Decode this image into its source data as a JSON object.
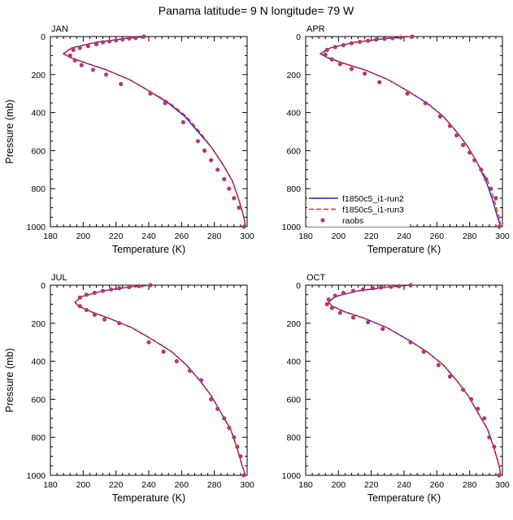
{
  "figure": {
    "title": "Panama  latitude= 9 N longitude= 79 W"
  },
  "legend": {
    "entries": [
      {
        "label": "f1850c5_i1-run2",
        "color": "#1f1fbf",
        "style": "solid"
      },
      {
        "label": "f1850c5_i1-run3",
        "color": "#e8261f",
        "style": "dashed"
      },
      {
        "label": "raobs",
        "color": "#b23a6e",
        "style": "marker"
      }
    ]
  },
  "chart_data": [
    {
      "type": "line",
      "panel": "JAN",
      "xlabel": "Temperature (K)",
      "ylabel": "Pressure (mb)",
      "xlim": [
        180,
        300
      ],
      "ylim": [
        0,
        1000
      ],
      "y_inverted": true,
      "xticks": [
        "180",
        "200",
        "220",
        "240",
        "260",
        "280",
        "300"
      ],
      "yticks": [
        "0",
        "200",
        "400",
        "600",
        "800",
        "1000"
      ],
      "series": [
        {
          "name": "f1850c5_i1-run2",
          "x": [
            239,
            226,
            208,
            193,
            188,
            192,
            202,
            214,
            228,
            241,
            252,
            262,
            270,
            278,
            285,
            291,
            295,
            298,
            299
          ],
          "y": [
            0,
            10,
            30,
            60,
            90,
            110,
            140,
            175,
            225,
            290,
            350,
            420,
            500,
            580,
            670,
            760,
            860,
            950,
            1000
          ]
        },
        {
          "name": "f1850c5_i1-run3",
          "x": [
            239,
            226,
            208,
            193,
            188,
            192,
            202,
            214,
            228,
            241,
            252,
            263,
            271,
            278,
            285,
            291,
            295,
            298,
            299
          ],
          "y": [
            0,
            10,
            30,
            60,
            90,
            110,
            140,
            175,
            225,
            290,
            345,
            420,
            500,
            580,
            670,
            760,
            860,
            950,
            1000
          ]
        },
        {
          "name": "raobs",
          "x": [
            237,
            232,
            228,
            224,
            220,
            216,
            212,
            208,
            203,
            198,
            194,
            192,
            195,
            199,
            206,
            214,
            223,
            241,
            250,
            261,
            270,
            274,
            278,
            282,
            286,
            289,
            292,
            295,
            298
          ],
          "y": [
            0,
            7,
            10,
            15,
            20,
            25,
            30,
            40,
            50,
            60,
            70,
            100,
            125,
            150,
            175,
            200,
            250,
            300,
            350,
            450,
            550,
            600,
            650,
            700,
            750,
            800,
            850,
            900,
            1000
          ]
        }
      ]
    },
    {
      "type": "line",
      "panel": "APR",
      "xlabel": "Temperature (K)",
      "ylabel": "",
      "xlim": [
        180,
        300
      ],
      "ylim": [
        0,
        1000
      ],
      "y_inverted": true,
      "xticks": [
        "180",
        "200",
        "220",
        "240",
        "260",
        "280",
        "300"
      ],
      "yticks": [
        "0",
        "200",
        "400",
        "600",
        "800",
        "1000"
      ],
      "series": [
        {
          "name": "f1850c5_i1-run2",
          "x": [
            243,
            229,
            210,
            195,
            189,
            193,
            203,
            216,
            230,
            243,
            254,
            264,
            272,
            279,
            285,
            290,
            294,
            297,
            299
          ],
          "y": [
            0,
            10,
            30,
            60,
            90,
            110,
            140,
            175,
            225,
            290,
            350,
            420,
            500,
            580,
            670,
            760,
            860,
            950,
            1000
          ]
        },
        {
          "name": "f1850c5_i1-run3",
          "x": [
            243,
            229,
            210,
            195,
            189,
            193,
            203,
            216,
            230,
            243,
            254,
            264,
            272,
            279,
            285,
            291,
            295,
            298,
            299
          ],
          "y": [
            0,
            10,
            30,
            60,
            90,
            110,
            140,
            175,
            225,
            290,
            350,
            420,
            500,
            580,
            670,
            760,
            860,
            950,
            1000
          ]
        },
        {
          "name": "raobs",
          "x": [
            245,
            238,
            233,
            228,
            223,
            218,
            213,
            208,
            203,
            198,
            193,
            192,
            196,
            201,
            208,
            216,
            225,
            242,
            253,
            262,
            268,
            272,
            276,
            280,
            283,
            287,
            290,
            293,
            296,
            298
          ],
          "y": [
            0,
            5,
            8,
            12,
            16,
            22,
            28,
            35,
            45,
            55,
            70,
            95,
            120,
            145,
            170,
            195,
            240,
            300,
            350,
            420,
            470,
            520,
            570,
            610,
            650,
            700,
            750,
            800,
            850,
            1000
          ]
        }
      ]
    },
    {
      "type": "line",
      "panel": "JUL",
      "xlabel": "Temperature (K)",
      "ylabel": "Pressure (mb)",
      "xlim": [
        180,
        300
      ],
      "ylim": [
        0,
        1000
      ],
      "y_inverted": true,
      "xticks": [
        "180",
        "200",
        "220",
        "240",
        "260",
        "280",
        "300"
      ],
      "yticks": [
        "0",
        "200",
        "400",
        "600",
        "800",
        "1000"
      ],
      "series": [
        {
          "name": "f1850c5_i1-run2",
          "x": [
            241,
            228,
            212,
            199,
            195,
            197,
            205,
            216,
            230,
            243,
            254,
            263,
            271,
            278,
            284,
            290,
            294,
            297,
            299
          ],
          "y": [
            0,
            10,
            30,
            60,
            90,
            110,
            140,
            175,
            225,
            290,
            350,
            420,
            500,
            580,
            670,
            760,
            860,
            950,
            1000
          ]
        },
        {
          "name": "f1850c5_i1-run3",
          "x": [
            241,
            228,
            212,
            199,
            195,
            197,
            205,
            216,
            230,
            243,
            254,
            263,
            271,
            278,
            284,
            290,
            294,
            297,
            299
          ],
          "y": [
            0,
            10,
            30,
            60,
            90,
            110,
            140,
            175,
            225,
            290,
            350,
            420,
            500,
            580,
            670,
            760,
            860,
            950,
            1000
          ]
        },
        {
          "name": "raobs",
          "x": [
            241,
            234,
            228,
            222,
            217,
            212,
            207,
            202,
            198,
            198,
            202,
            207,
            213,
            222,
            240,
            249,
            257,
            265,
            272,
            278,
            282,
            286,
            289,
            292,
            294,
            296,
            298
          ],
          "y": [
            0,
            5,
            10,
            16,
            22,
            30,
            40,
            50,
            65,
            110,
            130,
            155,
            180,
            200,
            300,
            350,
            400,
            450,
            500,
            600,
            650,
            700,
            750,
            800,
            850,
            900,
            1000
          ]
        }
      ]
    },
    {
      "type": "line",
      "panel": "OCT",
      "xlabel": "Temperature (K)",
      "ylabel": "",
      "xlim": [
        180,
        300
      ],
      "ylim": [
        0,
        1000
      ],
      "y_inverted": true,
      "xticks": [
        "180",
        "200",
        "220",
        "240",
        "260",
        "280",
        "300"
      ],
      "yticks": [
        "0",
        "200",
        "400",
        "600",
        "800",
        "1000"
      ],
      "series": [
        {
          "name": "f1850c5_i1-run2",
          "x": [
            244,
            230,
            212,
            198,
            194,
            196,
            204,
            216,
            230,
            243,
            254,
            264,
            272,
            279,
            285,
            291,
            295,
            298,
            299
          ],
          "y": [
            0,
            10,
            30,
            60,
            90,
            110,
            140,
            175,
            225,
            290,
            350,
            420,
            500,
            580,
            670,
            760,
            860,
            950,
            1000
          ]
        },
        {
          "name": "f1850c5_i1-run3",
          "x": [
            244,
            230,
            212,
            198,
            194,
            196,
            204,
            216,
            230,
            243,
            254,
            264,
            272,
            279,
            285,
            291,
            295,
            298,
            299
          ],
          "y": [
            0,
            10,
            30,
            60,
            90,
            110,
            140,
            175,
            225,
            290,
            350,
            420,
            500,
            580,
            670,
            760,
            860,
            950,
            1000
          ]
        },
        {
          "name": "raobs",
          "x": [
            244,
            237,
            232,
            226,
            221,
            215,
            209,
            203,
            198,
            194,
            193,
            196,
            201,
            209,
            218,
            227,
            244,
            252,
            261,
            268,
            276,
            281,
            285,
            289,
            292,
            295,
            298
          ],
          "y": [
            0,
            5,
            8,
            12,
            16,
            22,
            30,
            40,
            55,
            75,
            100,
            120,
            145,
            170,
            195,
            230,
            300,
            350,
            420,
            480,
            550,
            600,
            650,
            700,
            800,
            850,
            1000
          ]
        }
      ]
    }
  ]
}
